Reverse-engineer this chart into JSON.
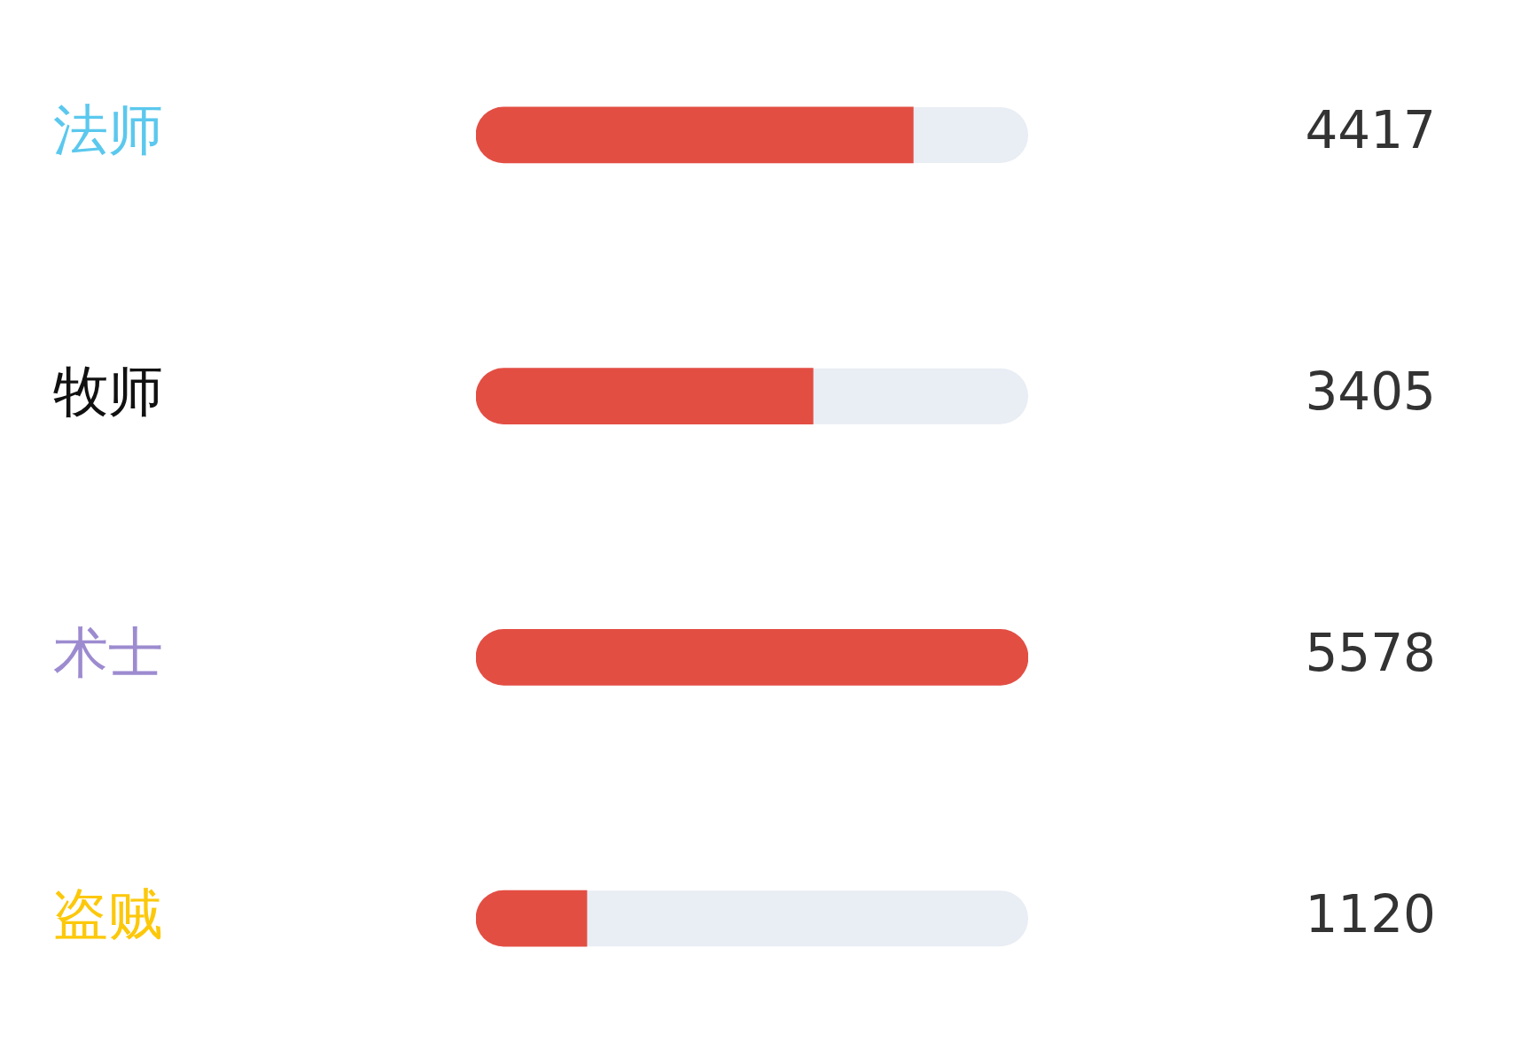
{
  "chart_data": {
    "type": "bar",
    "orientation": "horizontal",
    "categories": [
      "法师",
      "牧师",
      "术士",
      "盗贼"
    ],
    "values": [
      4417,
      3405,
      5578,
      1120
    ],
    "color": "#e34e43",
    "xlim": [
      0,
      5578
    ],
    "data_labels": true,
    "tick_labels": "y",
    "grid": false,
    "legend": false
  }
}
